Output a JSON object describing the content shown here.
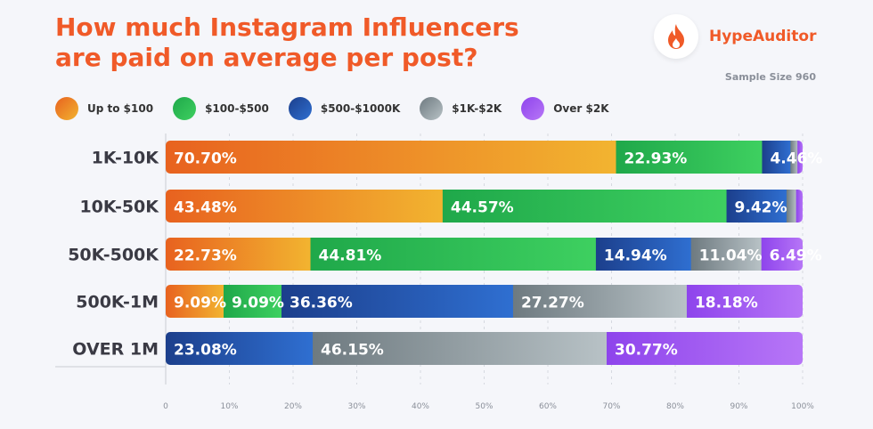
{
  "header": {
    "title_line1": "How much Instagram Influencers",
    "title_line2": "are paid on average per post?",
    "brand": "HypeAuditor",
    "sample": "Sample Size 960"
  },
  "colors": {
    "title": "#f05a28",
    "up_to_100": [
      "#e8621f",
      "#f2b430"
    ],
    "100_500": [
      "#1fa84a",
      "#3ed060"
    ],
    "500_1000k": [
      "#1c3f8c",
      "#2f6fd1"
    ],
    "1k_2k": [
      "#6e7a80",
      "#b8c2c6"
    ],
    "over_2k": [
      "#8e44ec",
      "#b776f7"
    ]
  },
  "chart_data": {
    "type": "bar",
    "orientation": "horizontal",
    "stacked": true,
    "categories": [
      "1K-10K",
      "10K-50K",
      "50K-500K",
      "500K-1M",
      "OVER 1M"
    ],
    "series": [
      {
        "name": "Up to $100",
        "values": [
          70.7,
          43.48,
          22.73,
          9.09,
          0
        ],
        "labels": [
          "70.70%",
          "43.48%",
          "22.73%",
          "9.09%",
          ""
        ]
      },
      {
        "name": "$100-$500",
        "values": [
          22.93,
          44.57,
          44.81,
          9.09,
          0
        ],
        "labels": [
          "22.93%",
          "44.57%",
          "44.81%",
          "9.09%",
          ""
        ]
      },
      {
        "name": "$500-$1000K",
        "values": [
          4.46,
          9.42,
          14.94,
          36.36,
          23.08
        ],
        "labels": [
          "4.46%",
          "9.42%",
          "14.94%",
          "36.36%",
          "23.08%"
        ]
      },
      {
        "name": "$1K-$2K",
        "values": [
          1.1,
          1.5,
          11.04,
          27.27,
          46.15
        ],
        "labels": [
          "",
          "",
          "11.04%",
          "27.27%",
          "46.15%"
        ]
      },
      {
        "name": "Over $2K",
        "values": [
          0.8,
          1.03,
          6.49,
          18.18,
          30.77
        ],
        "labels": [
          "",
          "",
          "6.49%",
          "18.18%",
          "30.77%"
        ]
      }
    ],
    "x_ticks": [
      "0",
      "10%",
      "20%",
      "30%",
      "40%",
      "50%",
      "60%",
      "70%",
      "80%",
      "90%",
      "100%"
    ],
    "xlim": [
      0,
      100
    ],
    "legend_position": "top-left"
  }
}
